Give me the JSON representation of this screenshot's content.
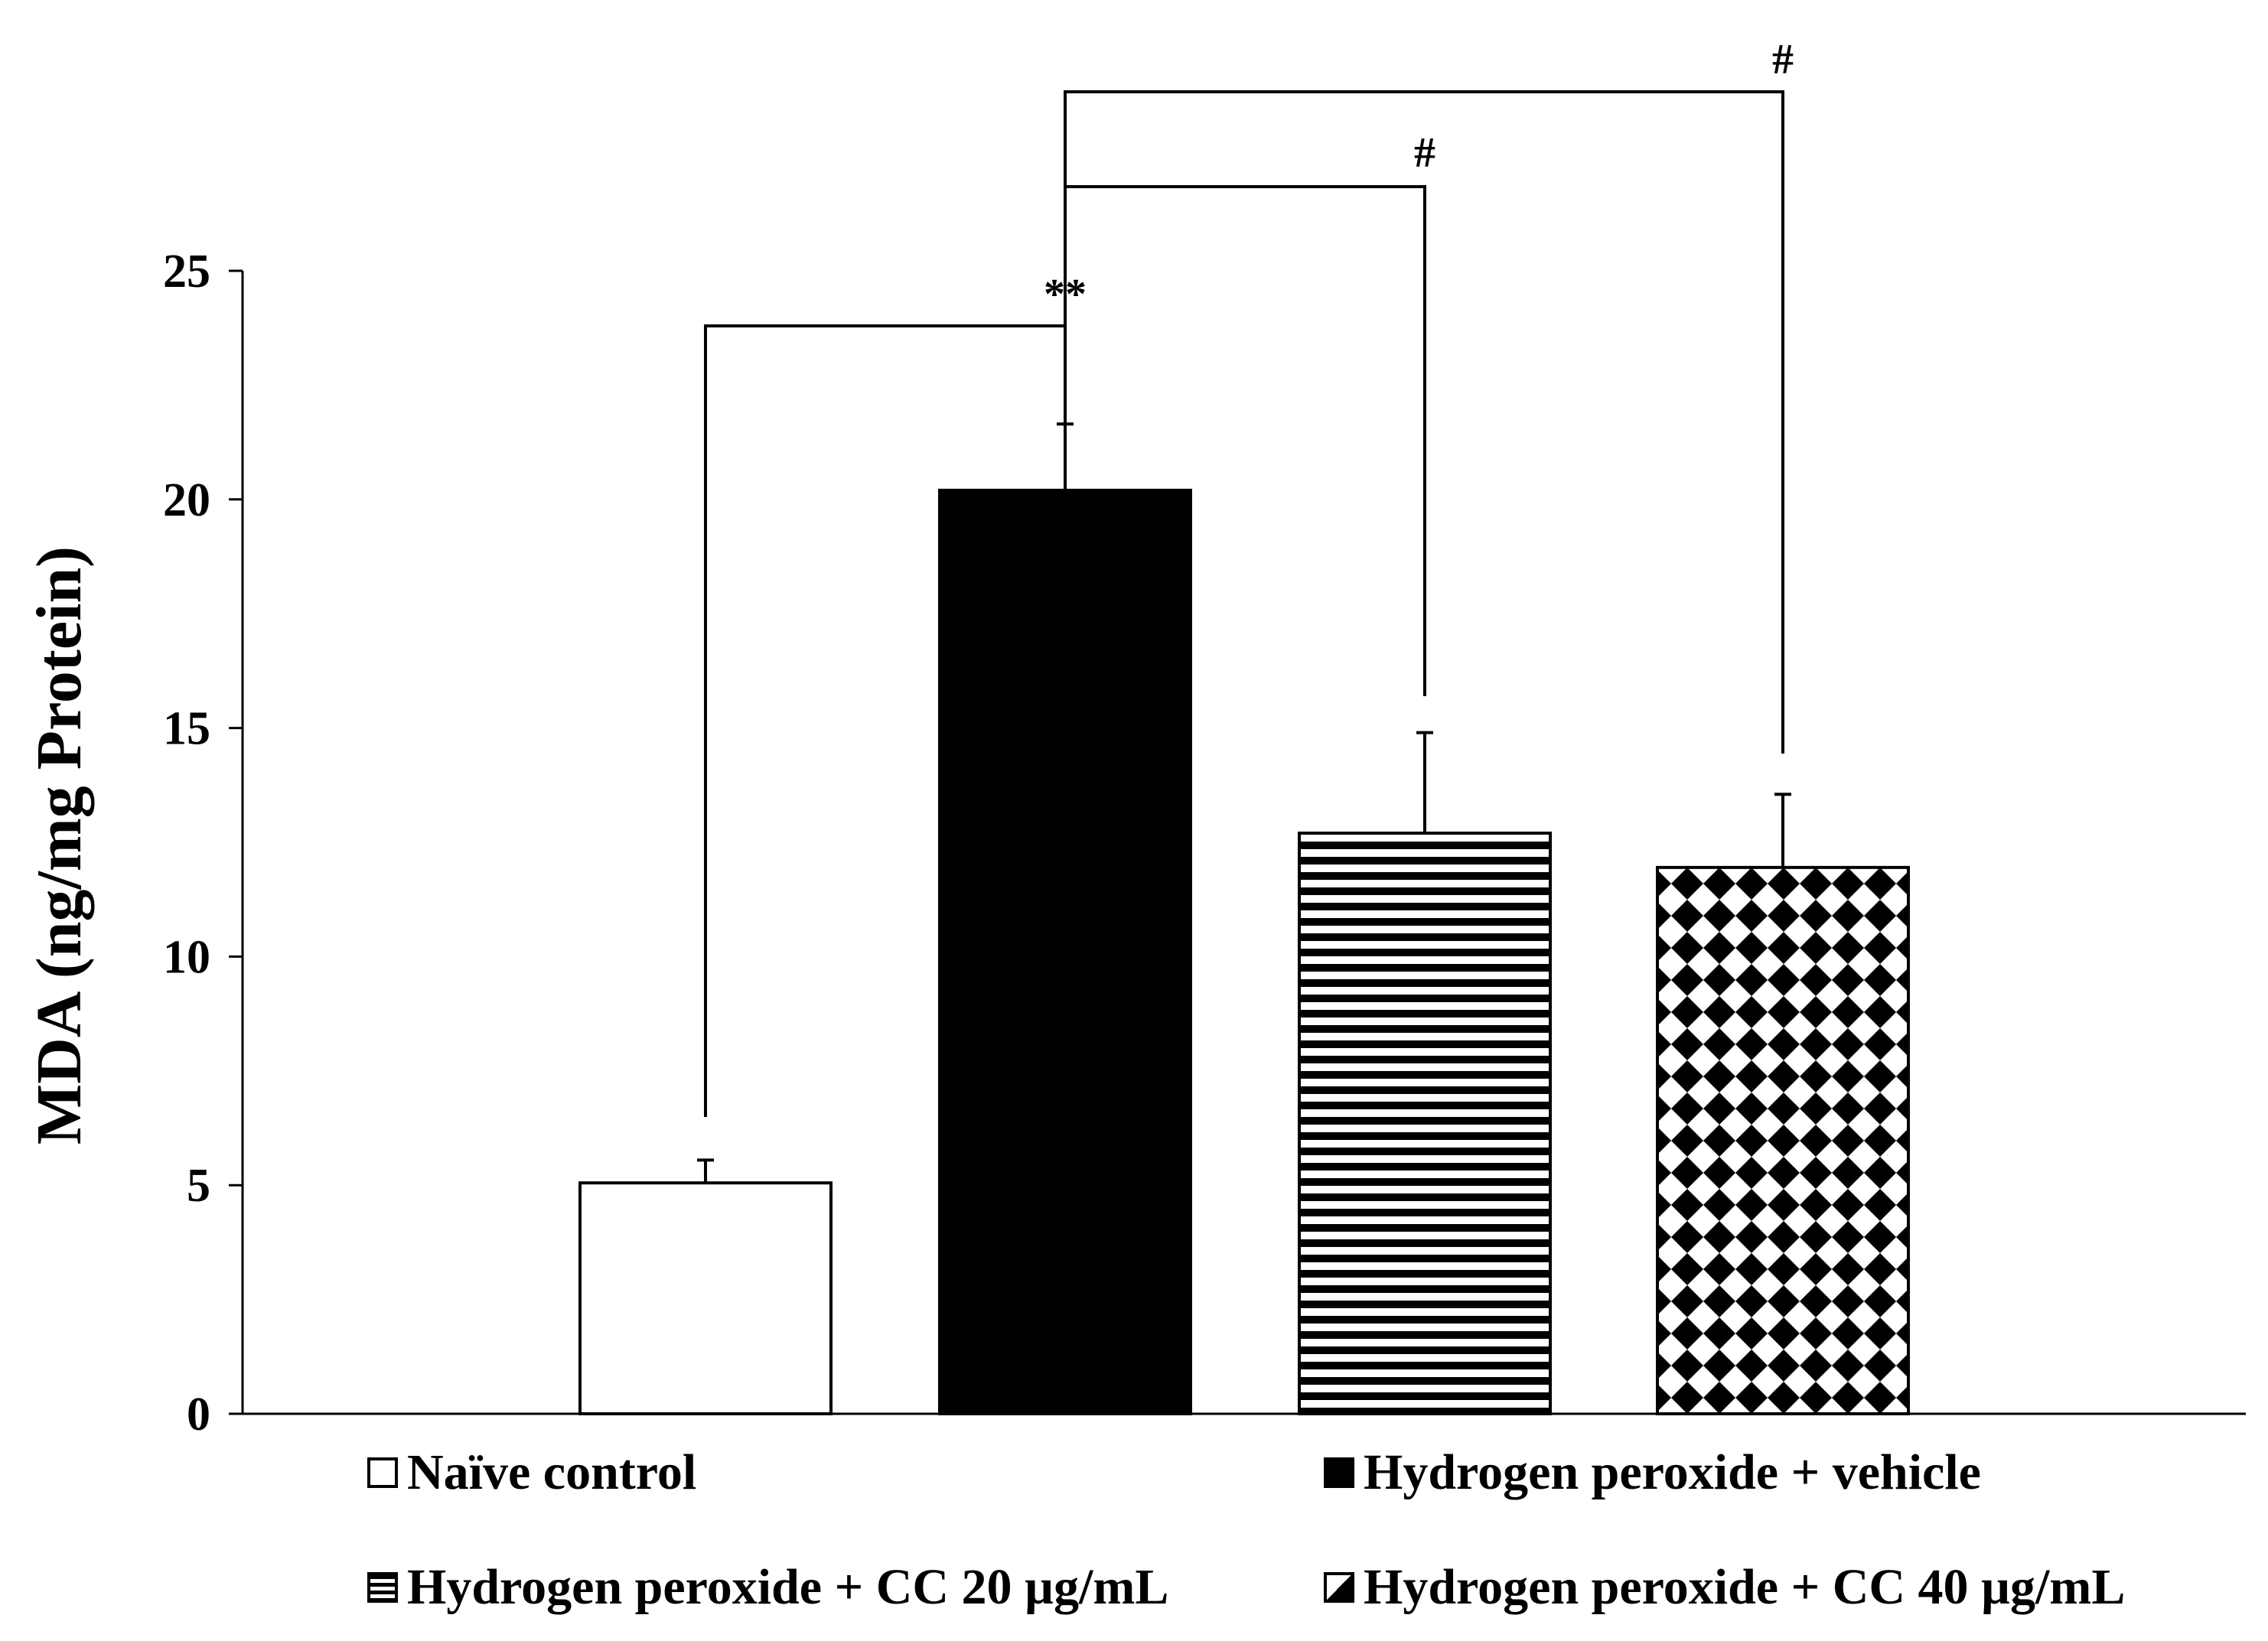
{
  "chart_data": {
    "type": "bar",
    "title": "",
    "xlabel": "",
    "ylabel": "MDA (ng/mg Protein)",
    "ylim": [
      0,
      25
    ],
    "yticks": [
      "0",
      "5",
      "10",
      "15",
      "20",
      "25"
    ],
    "categories": [
      "Naïve control",
      "Hydrogen peroxide + vehicle",
      "Hydrogen peroxide + CC 20 µg/mL",
      "Hydrogen peroxide + CC 40 µg/mL"
    ],
    "values": [
      5.05,
      20.2,
      12.7,
      11.95
    ],
    "errors": [
      0.5,
      1.45,
      2.2,
      1.6
    ],
    "fills": [
      "white",
      "black",
      "horizontal-stripes",
      "diamond-checker"
    ],
    "legend_placement": "bottom",
    "grid": false,
    "significance": [
      {
        "from": 0,
        "to": 1,
        "label": "**"
      },
      {
        "from": 1,
        "to": 2,
        "label": "#"
      },
      {
        "from": 1,
        "to": 3,
        "label": "#"
      }
    ]
  },
  "legend": {
    "items": [
      {
        "label": "Naïve control",
        "swatch": "white-icon"
      },
      {
        "label": "Hydrogen peroxide + vehicle",
        "swatch": "black-icon"
      },
      {
        "label": "Hydrogen peroxide + CC 20 µg/mL",
        "swatch": "stripes-icon"
      },
      {
        "label": "Hydrogen peroxide + CC 40 µg/mL",
        "swatch": "checker-icon"
      }
    ]
  }
}
